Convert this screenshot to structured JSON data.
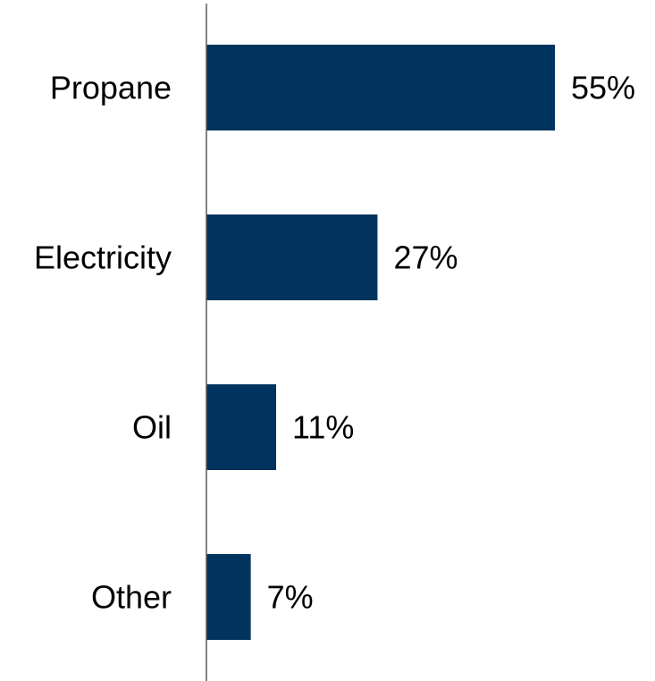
{
  "chart_data": {
    "type": "bar",
    "orientation": "horizontal",
    "categories": [
      "Propane",
      "Electricity",
      "Oil",
      "Other"
    ],
    "values": [
      55,
      27,
      11,
      7
    ],
    "value_labels": [
      "55%",
      "27%",
      "11%",
      "7%"
    ],
    "unit": "%",
    "xlim": [
      0,
      55
    ],
    "grid": false,
    "legend": "none",
    "colors": {
      "bar": "#00345E",
      "axis": "#595959",
      "text": "#000000"
    }
  }
}
